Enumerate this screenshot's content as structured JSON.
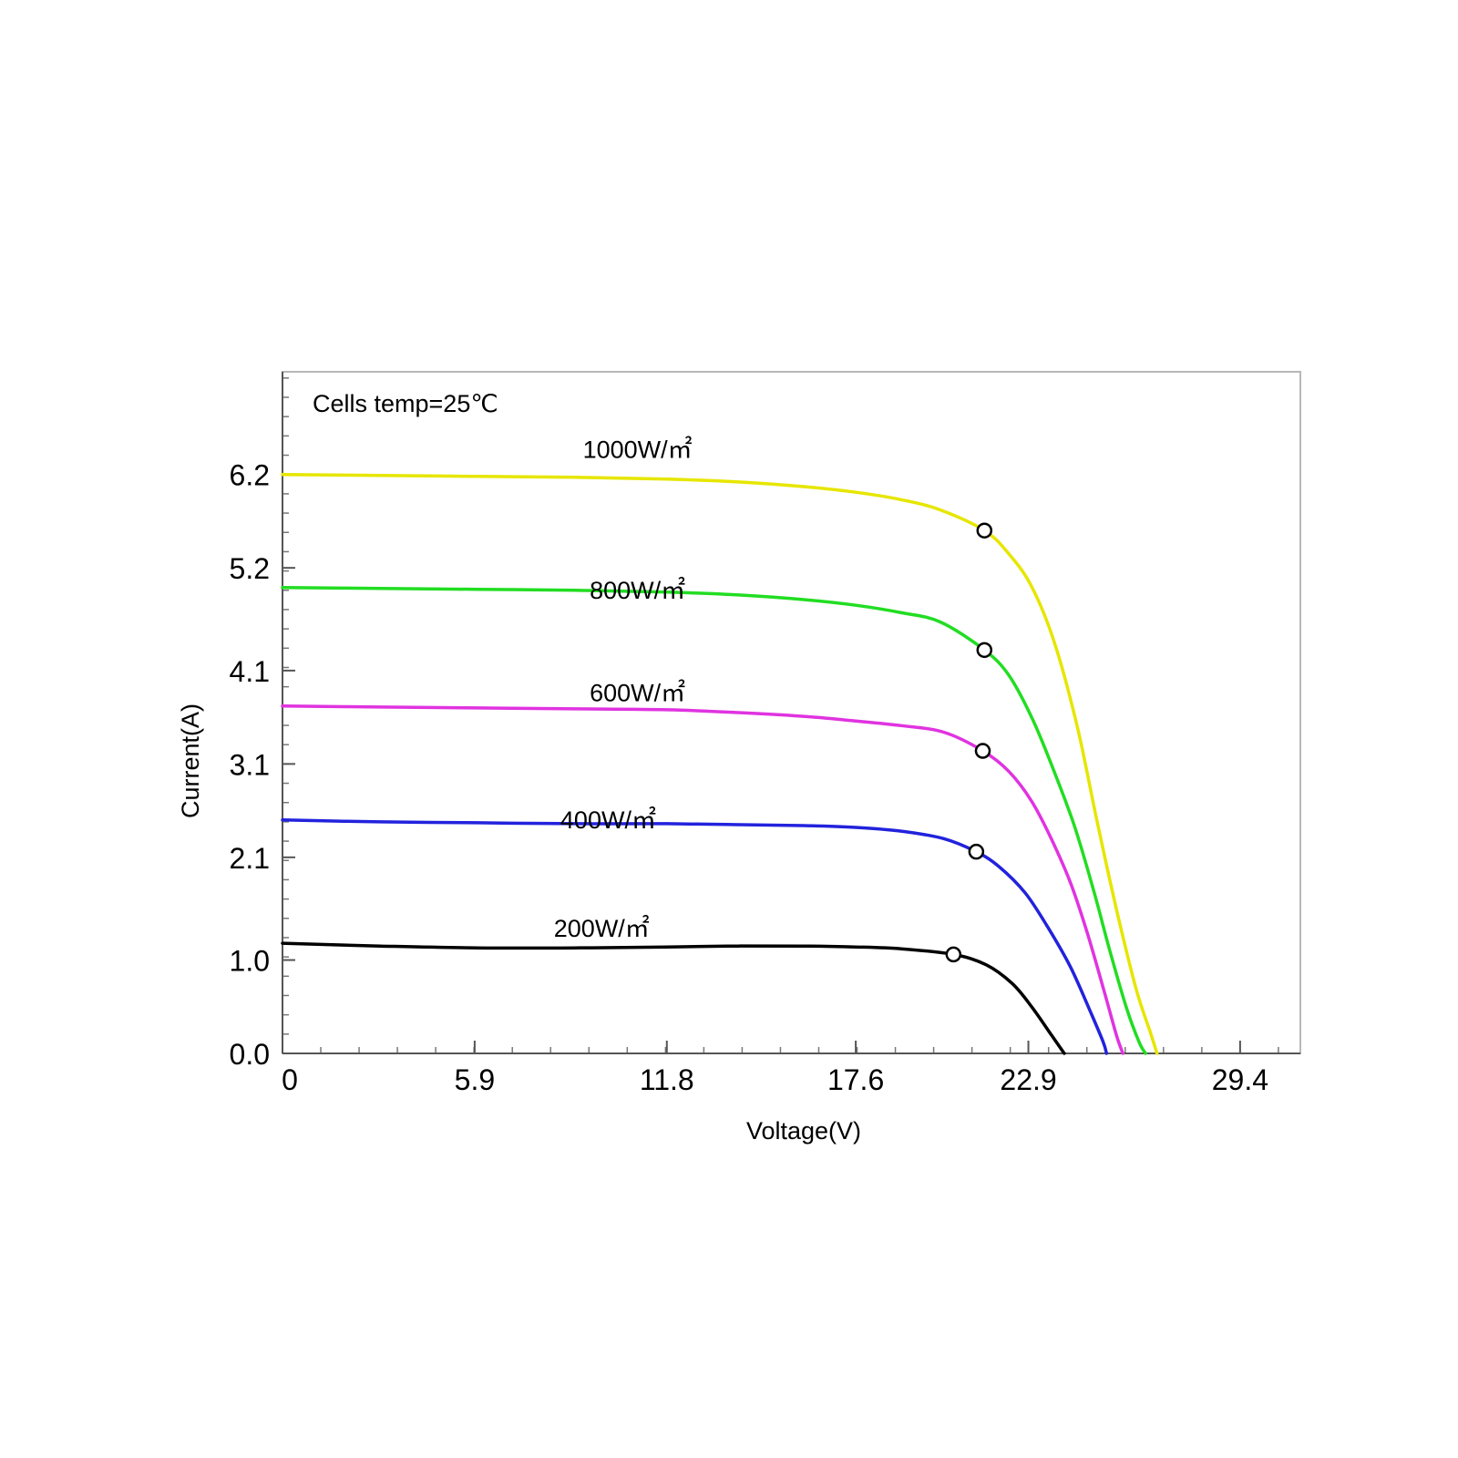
{
  "chart_data": {
    "type": "line",
    "annotation": "Cells temp=25℃",
    "xlabel": "Voltage(V)",
    "ylabel": "Current(A)",
    "xlim": [
      0,
      31.25
    ],
    "ylim": [
      0,
      7.3
    ],
    "x_ticks": [
      0,
      5.9,
      11.8,
      17.6,
      22.9,
      29.4
    ],
    "x_tick_labels": [
      "0",
      "5.9",
      "11.8",
      "17.6",
      "22.9",
      "29.4"
    ],
    "y_ticks": [
      0.0,
      1.0,
      2.1,
      3.1,
      4.1,
      5.2,
      6.2
    ],
    "y_tick_labels": [
      "0.0",
      "1.0",
      "2.1",
      "3.1",
      "4.1",
      "5.2",
      "6.2"
    ],
    "grid": false,
    "legend": "none",
    "series": [
      {
        "name": "1000W/㎡",
        "color": "#e6e600",
        "label_at": [
          10.9,
          6.38
        ],
        "mpp": [
          21.55,
          5.6
        ],
        "points": [
          [
            0,
            6.2
          ],
          [
            3,
            6.19
          ],
          [
            6,
            6.18
          ],
          [
            9,
            6.17
          ],
          [
            11.8,
            6.15
          ],
          [
            14,
            6.12
          ],
          [
            16,
            6.07
          ],
          [
            17.6,
            6.01
          ],
          [
            19,
            5.93
          ],
          [
            20.2,
            5.82
          ],
          [
            21.55,
            5.6
          ],
          [
            22.3,
            5.35
          ],
          [
            23,
            5.0
          ],
          [
            23.7,
            4.4
          ],
          [
            24.4,
            3.5
          ],
          [
            25.0,
            2.5
          ],
          [
            25.6,
            1.55
          ],
          [
            26.2,
            0.7
          ],
          [
            26.65,
            0.22
          ],
          [
            26.85,
            0.0
          ]
        ]
      },
      {
        "name": "800W/㎡",
        "color": "#22dd22",
        "label_at": [
          10.9,
          4.87
        ],
        "mpp": [
          21.55,
          4.32
        ],
        "points": [
          [
            0,
            4.99
          ],
          [
            3,
            4.98
          ],
          [
            6,
            4.97
          ],
          [
            9,
            4.96
          ],
          [
            11.8,
            4.94
          ],
          [
            14,
            4.91
          ],
          [
            16,
            4.86
          ],
          [
            17.6,
            4.8
          ],
          [
            19,
            4.72
          ],
          [
            20.2,
            4.62
          ],
          [
            21.55,
            4.32
          ],
          [
            22.3,
            4.05
          ],
          [
            23,
            3.6
          ],
          [
            23.6,
            3.1
          ],
          [
            24.3,
            2.45
          ],
          [
            24.9,
            1.75
          ],
          [
            25.4,
            1.1
          ],
          [
            25.9,
            0.5
          ],
          [
            26.3,
            0.12
          ],
          [
            26.5,
            0.0
          ]
        ]
      },
      {
        "name": "600W/㎡",
        "color": "#e033e0",
        "label_at": [
          10.9,
          3.77
        ],
        "mpp": [
          21.5,
          3.24
        ],
        "points": [
          [
            0,
            3.72
          ],
          [
            3,
            3.71
          ],
          [
            6,
            3.7
          ],
          [
            9,
            3.69
          ],
          [
            11.8,
            3.68
          ],
          [
            14,
            3.65
          ],
          [
            16,
            3.61
          ],
          [
            17.6,
            3.56
          ],
          [
            19,
            3.51
          ],
          [
            20.3,
            3.44
          ],
          [
            21.5,
            3.24
          ],
          [
            22.3,
            3.02
          ],
          [
            23,
            2.7
          ],
          [
            23.6,
            2.3
          ],
          [
            24.2,
            1.82
          ],
          [
            24.7,
            1.3
          ],
          [
            25.2,
            0.7
          ],
          [
            25.6,
            0.2
          ],
          [
            25.8,
            0.0
          ]
        ]
      },
      {
        "name": "400W/㎡",
        "color": "#2222dd",
        "label_at": [
          10.0,
          2.41
        ],
        "mpp": [
          21.3,
          2.16
        ],
        "points": [
          [
            0,
            2.5
          ],
          [
            3,
            2.48
          ],
          [
            6,
            2.47
          ],
          [
            9,
            2.46
          ],
          [
            11.8,
            2.46
          ],
          [
            14,
            2.45
          ],
          [
            16,
            2.44
          ],
          [
            17.6,
            2.42
          ],
          [
            19,
            2.38
          ],
          [
            20.3,
            2.3
          ],
          [
            21.3,
            2.16
          ],
          [
            22,
            2.0
          ],
          [
            22.8,
            1.72
          ],
          [
            23.5,
            1.35
          ],
          [
            24.2,
            0.92
          ],
          [
            24.8,
            0.45
          ],
          [
            25.2,
            0.12
          ],
          [
            25.3,
            0.0
          ]
        ]
      },
      {
        "name": "200W/㎡",
        "color": "#000000",
        "label_at": [
          9.8,
          1.25
        ],
        "mpp": [
          20.6,
          1.06
        ],
        "points": [
          [
            0,
            1.18
          ],
          [
            3,
            1.15
          ],
          [
            6,
            1.13
          ],
          [
            9,
            1.13
          ],
          [
            11.8,
            1.14
          ],
          [
            14,
            1.15
          ],
          [
            16,
            1.15
          ],
          [
            17.6,
            1.14
          ],
          [
            19,
            1.12
          ],
          [
            20.6,
            1.06
          ],
          [
            21.6,
            0.95
          ],
          [
            22.4,
            0.75
          ],
          [
            23.0,
            0.5
          ],
          [
            23.6,
            0.2
          ],
          [
            24.0,
            0.0
          ]
        ]
      }
    ]
  }
}
